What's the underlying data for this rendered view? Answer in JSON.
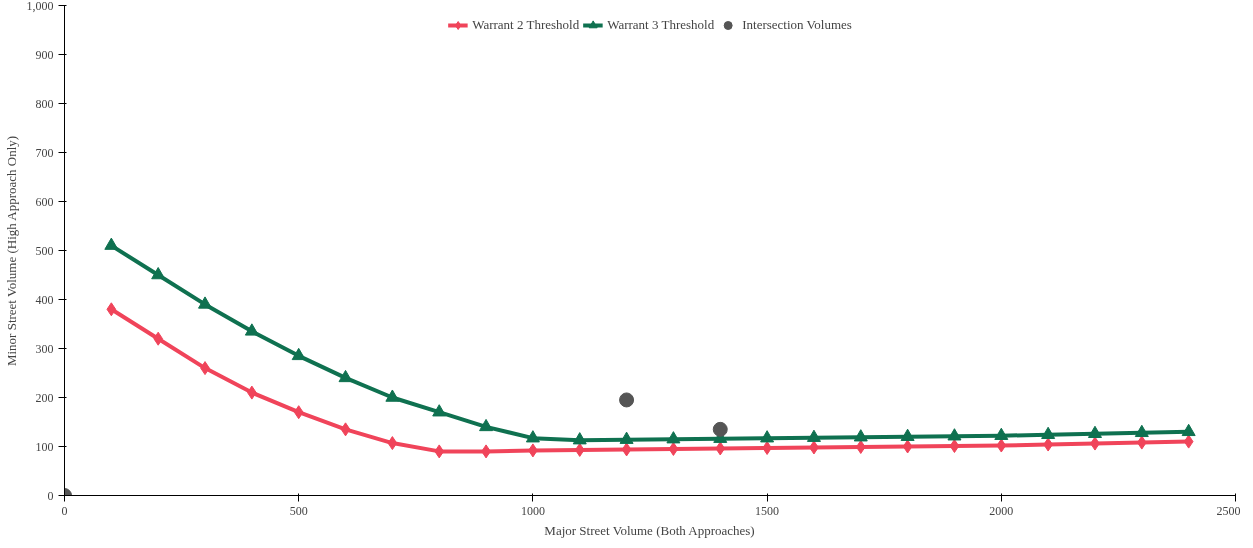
{
  "chart_data": {
    "type": "line",
    "xlabel": "Major Street Volume (Both Approaches)",
    "ylabel": "Minor Street Volume (High Approach Only)",
    "xlim": [
      0,
      2500
    ],
    "ylim": [
      0,
      1000
    ],
    "xticks": [
      0,
      500,
      1000,
      1500,
      2000,
      2500
    ],
    "yticks": [
      0,
      100,
      200,
      300,
      400,
      500,
      600,
      700,
      800,
      900,
      {
        "value": 1000,
        "label": "1,000"
      }
    ],
    "grid": false,
    "legend": "top",
    "line_style": "solid",
    "series": [
      {
        "name": "Warrant 2 Threshold",
        "color": "#f0445a",
        "marker": "diamond",
        "x": [
          100,
          200,
          300,
          400,
          500,
          600,
          700,
          800,
          900,
          1000,
          1100,
          1200,
          1300,
          1400,
          1500,
          1600,
          1700,
          1800,
          1900,
          2000,
          2100,
          2200,
          2300,
          2400
        ],
        "values": [
          380,
          320,
          260,
          210,
          170,
          135,
          107,
          90,
          90,
          92,
          93,
          94,
          95,
          96,
          97,
          98,
          99,
          100,
          101,
          102,
          104,
          106,
          108,
          110
        ]
      },
      {
        "name": "Warrant 3 Threshold",
        "color": "#0f7150",
        "marker": "triangle",
        "x": [
          100,
          200,
          300,
          400,
          500,
          600,
          700,
          800,
          900,
          1000,
          1100,
          1200,
          1300,
          1400,
          1500,
          1600,
          1700,
          1800,
          1900,
          2000,
          2100,
          2200,
          2300,
          2400
        ],
        "values": [
          510,
          450,
          390,
          335,
          285,
          240,
          200,
          170,
          140,
          117,
          113,
          114,
          115,
          116,
          117,
          118,
          119,
          120,
          121,
          122,
          124,
          126,
          128,
          130
        ]
      },
      {
        "name": "Intersection Volumes",
        "type": "scatter",
        "color": "#555555",
        "marker": "circle",
        "x": [
          0,
          1200,
          1400
        ],
        "values": [
          0,
          195,
          135
        ]
      }
    ]
  }
}
